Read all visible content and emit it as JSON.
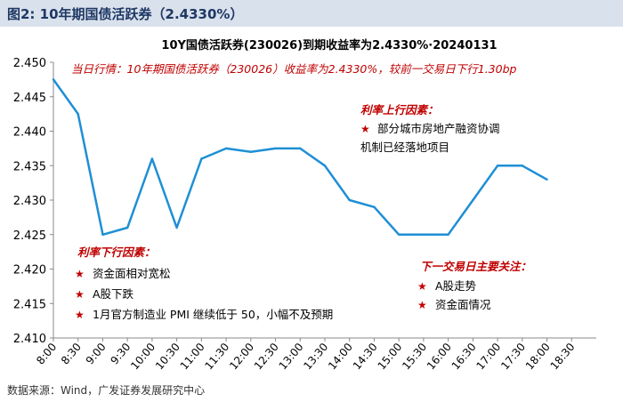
{
  "header": {
    "title": "图2:  10年期国债活跃券（2.4330%）"
  },
  "chart_data": {
    "type": "line",
    "title": "10Y国债活跃券(230026)到期收益率为2.4330%·20240131",
    "ylim": [
      2.41,
      2.45
    ],
    "yticks": [
      2.41,
      2.415,
      2.42,
      2.425,
      2.43,
      2.435,
      2.44,
      2.445,
      2.45
    ],
    "ytick_labels": [
      "2.410",
      "2.415",
      "2.420",
      "2.425",
      "2.430",
      "2.435",
      "2.440",
      "2.445",
      "2.450"
    ],
    "categories": [
      "8:00",
      "8:30",
      "9:00",
      "9:30",
      "10:00",
      "10:30",
      "11:00",
      "11:30",
      "12:00",
      "12:30",
      "13:00",
      "13:30",
      "14:00",
      "14:30",
      "15:00",
      "15:30",
      "16:00",
      "16:30",
      "17:00",
      "17:30",
      "18:00",
      "18:30"
    ],
    "values": [
      2.4475,
      2.4425,
      2.425,
      2.426,
      2.436,
      2.426,
      2.436,
      2.4375,
      2.437,
      2.4375,
      2.4375,
      2.435,
      2.43,
      2.429,
      2.425,
      2.425,
      2.425,
      2.43,
      2.435,
      2.435,
      2.433,
      null
    ],
    "series_color": "#1e8fd5",
    "grid": false,
    "annotations": {
      "today": "当日行情：10年期国债活跃券（230026）收益率为2.4330%，较前一交易日下行1.30bp",
      "up_title": "利率上行因素：",
      "up_items": [
        "部分城市房地产融资协调",
        "机制已经落地项目"
      ],
      "down_title": "利率下行因素：",
      "down_items": [
        "资金面相对宽松",
        "A股下跌",
        "1月官方制造业 PMI 继续低于 50，小幅不及预期"
      ],
      "next_title": "下一交易日主要关注：",
      "next_items": [
        "A股走势",
        "资金面情况"
      ],
      "star": "★",
      "accent_color": "#c00000"
    }
  },
  "source": "数据来源：Wind，广发证券发展研究中心"
}
